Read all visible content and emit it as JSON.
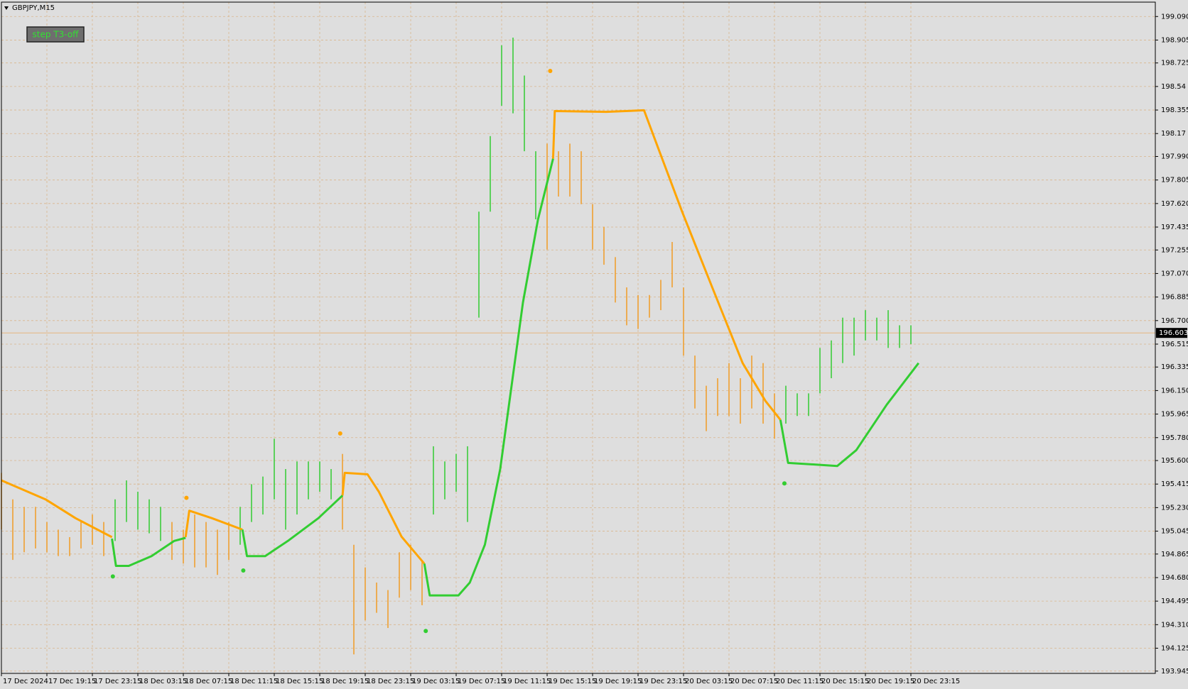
{
  "chart_data": {
    "type": "ohlc",
    "symbol_label": "GBPJPY,M15",
    "button_label": "step T3-off",
    "grid": true,
    "grid_color": "#d9b58c",
    "background": "#dedede",
    "xlim": [
      0,
      406
    ],
    "ylim": [
      193.927,
      199.203
    ],
    "xticks": [
      {
        "value": 0,
        "label": "17 Dec 2024"
      },
      {
        "value": 16,
        "label": "17 Dec 19:15"
      },
      {
        "value": 32,
        "label": "17 Dec 23:15"
      },
      {
        "value": 48,
        "label": "18 Dec 03:15"
      },
      {
        "value": 64,
        "label": "18 Dec 07:15"
      },
      {
        "value": 80,
        "label": "18 Dec 11:15"
      },
      {
        "value": 96,
        "label": "18 Dec 15:15"
      },
      {
        "value": 112,
        "label": "18 Dec 19:15"
      },
      {
        "value": 128,
        "label": "18 Dec 23:15"
      },
      {
        "value": 144,
        "label": "19 Dec 03:15"
      },
      {
        "value": 160,
        "label": "19 Dec 07:15"
      },
      {
        "value": 176,
        "label": "19 Dec 11:15"
      },
      {
        "value": 192,
        "label": "19 Dec 15:15"
      },
      {
        "value": 208,
        "label": "19 Dec 19:15"
      },
      {
        "value": 224,
        "label": "19 Dec 23:15"
      },
      {
        "value": 240,
        "label": "20 Dec 03:15"
      },
      {
        "value": 256,
        "label": "20 Dec 07:15"
      },
      {
        "value": 272,
        "label": "20 Dec 11:15"
      },
      {
        "value": 288,
        "label": "20 Dec 15:15"
      },
      {
        "value": 304,
        "label": "20 Dec 19:15"
      },
      {
        "value": 320,
        "label": "20 Dec 23:15"
      }
    ],
    "yticks": [
      {
        "value": 199.09,
        "label": "199.090"
      },
      198.905,
      198.725,
      198.54,
      {
        "value": 198.355,
        "label": "198.355"
      },
      198.17,
      {
        "value": 197.99,
        "label": "197.990"
      },
      197.805,
      {
        "value": 197.62,
        "label": "197.620"
      },
      197.435,
      197.255,
      {
        "value": 197.07,
        "label": "197.070"
      },
      196.885,
      {
        "value": 196.7,
        "label": "196.700"
      },
      196.515,
      196.335,
      {
        "value": 196.15,
        "label": "196.150"
      },
      195.965,
      {
        "value": 195.78,
        "label": "195.780"
      },
      {
        "value": 195.6,
        "label": "195.600"
      },
      195.415,
      {
        "value": 195.23,
        "label": "195.230"
      },
      195.045,
      194.865,
      {
        "value": 194.68,
        "label": "194.680"
      },
      194.495,
      {
        "value": 194.31,
        "label": "194.310"
      },
      194.125,
      193.945
    ],
    "current_price": 196.603,
    "current_price_line_color": "#e8b070",
    "x": [
      0,
      4,
      8,
      12,
      16,
      20,
      24,
      28,
      32,
      36,
      40,
      44,
      48,
      52,
      56,
      60,
      64,
      68,
      72,
      76,
      80,
      84,
      88,
      92,
      96,
      100,
      104,
      108,
      112,
      116,
      120,
      124,
      128,
      132,
      136,
      140,
      144,
      148,
      152,
      156,
      160,
      164,
      168,
      172,
      176,
      180,
      184,
      188,
      192,
      196,
      200,
      204,
      208,
      212,
      216,
      220,
      224,
      228,
      232,
      236,
      240,
      244,
      248,
      252,
      256,
      260,
      264,
      268,
      272,
      276,
      280,
      284,
      288,
      292,
      296,
      300,
      304,
      308,
      312,
      316,
      320
    ],
    "high": [
      195.503,
      195.295,
      195.236,
      195.236,
      195.117,
      195.057,
      194.998,
      195.117,
      195.176,
      195.117,
      195.295,
      195.444,
      195.355,
      195.295,
      195.236,
      195.117,
      195.057,
      195.176,
      195.117,
      195.057,
      195.117,
      195.236,
      195.414,
      195.474,
      195.771,
      195.533,
      195.593,
      195.593,
      195.593,
      195.533,
      195.652,
      194.938,
      194.76,
      194.641,
      194.582,
      194.879,
      194.938,
      194.819,
      195.712,
      195.593,
      195.652,
      195.712,
      197.556,
      198.15,
      198.864,
      198.924,
      198.626,
      198.031,
      198.091,
      198.031,
      198.091,
      198.031,
      197.615,
      197.437,
      197.199,
      196.961,
      196.901,
      196.901,
      197.02,
      197.318,
      196.961,
      196.425,
      196.188,
      196.247,
      196.366,
      196.247,
      196.425,
      196.366,
      196.128,
      196.188,
      196.128,
      196.128,
      196.485,
      196.544,
      196.723,
      196.723,
      196.782,
      196.723,
      196.782,
      196.663,
      196.663
    ],
    "low": [
      195.057,
      194.819,
      194.879,
      194.909,
      194.879,
      194.849,
      194.849,
      194.909,
      194.938,
      194.849,
      194.968,
      195.117,
      195.057,
      195.028,
      194.968,
      194.819,
      194.79,
      194.76,
      194.76,
      194.701,
      194.819,
      194.938,
      195.117,
      195.176,
      195.295,
      195.057,
      195.176,
      195.295,
      195.355,
      195.295,
      195.057,
      194.076,
      194.344,
      194.403,
      194.284,
      194.522,
      194.582,
      194.463,
      195.176,
      195.295,
      195.355,
      195.117,
      196.723,
      197.556,
      198.388,
      198.329,
      198.031,
      197.496,
      197.258,
      197.675,
      197.675,
      197.615,
      197.258,
      197.139,
      196.842,
      196.663,
      196.634,
      196.723,
      196.782,
      196.961,
      196.425,
      196.009,
      195.831,
      195.95,
      195.95,
      195.89,
      196.009,
      195.89,
      195.771,
      195.89,
      195.95,
      195.95,
      196.128,
      196.247,
      196.366,
      196.425,
      196.544,
      196.544,
      196.485,
      196.485,
      196.515
    ],
    "colors": [
      "#f0a030",
      "#f0a030",
      "#f0a030",
      "#f0a030",
      "#f0a030",
      "#f0a030",
      "#f0a030",
      "#f0a030",
      "#f0a030",
      "#f0a030",
      "#3ccc3c",
      "#3ccc3c",
      "#3ccc3c",
      "#3ccc3c",
      "#3ccc3c",
      "#f0a030",
      "#f0a030",
      "#f0a030",
      "#f0a030",
      "#f0a030",
      "#f0a030",
      "#3ccc3c",
      "#3ccc3c",
      "#3ccc3c",
      "#3ccc3c",
      "#3ccc3c",
      "#3ccc3c",
      "#3ccc3c",
      "#3ccc3c",
      "#3ccc3c",
      "#f0a030",
      "#f0a030",
      "#f0a030",
      "#f0a030",
      "#f0a030",
      "#f0a030",
      "#f0a030",
      "#f0a030",
      "#3ccc3c",
      "#3ccc3c",
      "#3ccc3c",
      "#3ccc3c",
      "#3ccc3c",
      "#3ccc3c",
      "#3ccc3c",
      "#3ccc3c",
      "#3ccc3c",
      "#3ccc3c",
      "#f0a030",
      "#f0a030",
      "#f0a030",
      "#f0a030",
      "#f0a030",
      "#f0a030",
      "#f0a030",
      "#f0a030",
      "#f0a030",
      "#f0a030",
      "#f0a030",
      "#f0a030",
      "#f0a030",
      "#f0a030",
      "#f0a030",
      "#f0a030",
      "#f0a030",
      "#f0a030",
      "#f0a030",
      "#f0a030",
      "#f0a030",
      "#3ccc3c",
      "#3ccc3c",
      "#3ccc3c",
      "#3ccc3c",
      "#3ccc3c",
      "#3ccc3c",
      "#3ccc3c",
      "#3ccc3c",
      "#3ccc3c",
      "#3ccc3c",
      "#3ccc3c",
      "#3ccc3c"
    ],
    "lines": [
      {
        "color": "#ffa500",
        "x": [
          0,
          15.5,
          26.1,
          38.9,
          null,
          64.8,
          66.1,
          74.1,
          84.8,
          null,
          120,
          120.8,
          128.8,
          132.8,
          140.8,
          148.8,
          null,
          194.1,
          194.7,
          212.8,
          226.1,
          231.5,
          239.5,
          250.1,
          260.8,
          268.8,
          274.1
        ],
        "values": [
          195.444,
          195.295,
          195.147,
          194.998,
          null,
          194.998,
          195.206,
          195.147,
          195.057,
          null,
          195.325,
          195.503,
          195.492,
          195.355,
          195.001,
          194.79,
          null,
          197.972,
          198.347,
          198.341,
          198.353,
          198.031,
          197.556,
          196.961,
          196.366,
          196.069,
          195.92
        ]
      },
      {
        "color": "#32cd32",
        "x": [
          38.9,
          40.3,
          44.8,
          52.8,
          60.8,
          64.8,
          null,
          84.8,
          86.4,
          92.8,
          100.8,
          111.5,
          120,
          null,
          148.8,
          150.7,
          160.8,
          164.8,
          170.1,
          175.5,
          183.5,
          188.8,
          194.1,
          null,
          274.1,
          276.8,
          286.1,
          294.1,
          300.8,
          311.5,
          322.7
        ],
        "values": [
          194.986,
          194.772,
          194.772,
          194.849,
          194.968,
          194.992,
          null,
          195.057,
          194.849,
          194.849,
          194.968,
          195.147,
          195.325,
          null,
          194.79,
          194.54,
          194.54,
          194.641,
          194.938,
          195.533,
          196.842,
          197.496,
          197.972,
          null,
          195.92,
          195.581,
          195.569,
          195.557,
          195.682,
          196.039,
          196.366
        ]
      }
    ],
    "dots": [
      {
        "color": "#ffa500",
        "x": [
          65.1,
          119.2,
          193.1
        ],
        "values": [
          195.307,
          195.813,
          198.662
        ]
      },
      {
        "color": "#32cd32",
        "x": [
          39.2,
          85.1,
          149.3,
          275.5
        ],
        "values": [
          194.689,
          194.736,
          194.26,
          195.42
        ]
      }
    ]
  }
}
